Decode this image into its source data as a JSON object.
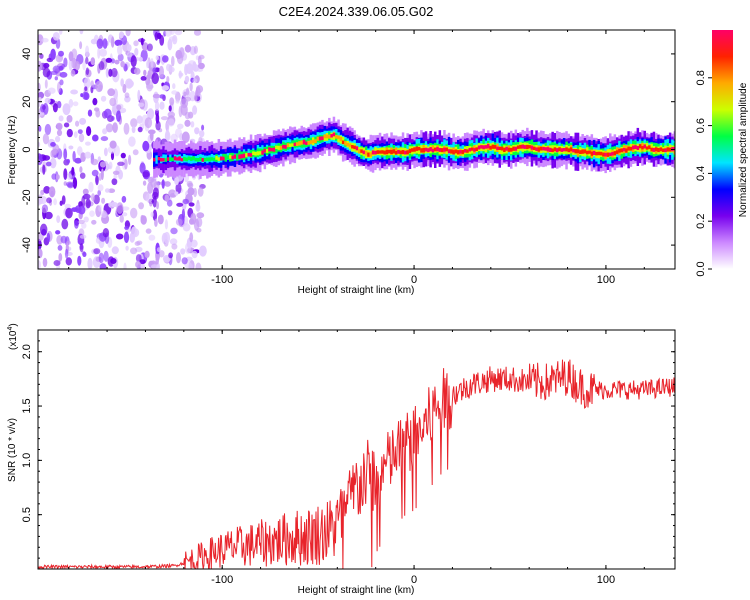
{
  "title": "C2E4.2024.339.06.05.G02",
  "chart_data": [
    {
      "type": "heatmap",
      "panel": "top",
      "xlabel": "Height of straight line (km)",
      "ylabel": "Frequency (Hz)",
      "xlim": [
        -196,
        136
      ],
      "ylim": [
        -50,
        50
      ],
      "x_ticks": [
        -100,
        0,
        100
      ],
      "y_ticks": [
        -40,
        -20,
        0,
        20,
        40
      ],
      "colorbar": {
        "label": "Normalized spectral amplitude",
        "range": [
          0,
          1
        ],
        "ticks": [
          "0.0",
          "0.2",
          "0.4",
          "0.6",
          "0.8"
        ],
        "colors": [
          "#ffffff",
          "#cc88ff",
          "#7700ee",
          "#0000ff",
          "#00e5ff",
          "#00ff44",
          "#ccff00",
          "#ffaa00",
          "#ff2200",
          "#ff0066"
        ]
      },
      "ridge_frequency_trace": {
        "x": [
          -136,
          -125,
          -115,
          -105,
          -95,
          -85,
          -75,
          -65,
          -55,
          -48,
          -42,
          -37,
          -32,
          -28,
          -24,
          -20,
          -15,
          -10,
          -5,
          0,
          5,
          10,
          15,
          20,
          25,
          30,
          35,
          40,
          45,
          50,
          55,
          60,
          65,
          70,
          75,
          80,
          85,
          90,
          95,
          100,
          105,
          110,
          115,
          120,
          125,
          130,
          136
        ],
        "y": [
          -4,
          -4,
          -4,
          -4,
          -3,
          -2,
          0,
          2,
          3,
          5,
          6,
          3,
          1,
          -1,
          -2,
          -1,
          -1,
          -1,
          -1,
          0,
          0,
          0,
          0,
          -1,
          -1,
          0,
          1,
          1,
          0,
          0,
          1,
          1,
          0,
          0,
          0,
          0,
          -1,
          -1,
          -2,
          -2,
          -1,
          0,
          1,
          1,
          0,
          0,
          0
        ]
      }
    },
    {
      "type": "line",
      "panel": "bottom",
      "xlabel": "Height of straight line (km)",
      "ylabel": "SNR (10 * v/v)",
      "y_multiplier": "(x10",
      "y_multiplier_exp": "4",
      "y_multiplier_close": ")",
      "xlim": [
        -196,
        136
      ],
      "ylim": [
        0,
        2.2
      ],
      "x_ticks": [
        -100,
        0,
        100
      ],
      "y_ticks": [
        "0.5",
        "1.0",
        "1.5",
        "2.0"
      ],
      "series": [
        {
          "color": "#e8242b",
          "x": [
            -196,
            -180,
            -160,
            -140,
            -125,
            -115,
            -105,
            -95,
            -85,
            -75,
            -65,
            -55,
            -45,
            -40,
            -35,
            -30,
            -25,
            -20,
            -15,
            -10,
            -5,
            0,
            5,
            10,
            15,
            20,
            25,
            30,
            35,
            40,
            50,
            60,
            70,
            80,
            85,
            90,
            100,
            110,
            120,
            136
          ],
          "y": [
            0.02,
            0.02,
            0.02,
            0.02,
            0.03,
            0.08,
            0.15,
            0.2,
            0.22,
            0.25,
            0.28,
            0.3,
            0.35,
            0.4,
            0.55,
            0.75,
            0.85,
            0.8,
            0.95,
            1.05,
            1.15,
            1.2,
            1.3,
            1.45,
            1.55,
            1.6,
            1.65,
            1.7,
            1.72,
            1.75,
            1.75,
            1.72,
            1.72,
            1.78,
            1.7,
            1.65,
            1.65,
            1.65,
            1.65,
            1.68
          ]
        }
      ]
    }
  ]
}
